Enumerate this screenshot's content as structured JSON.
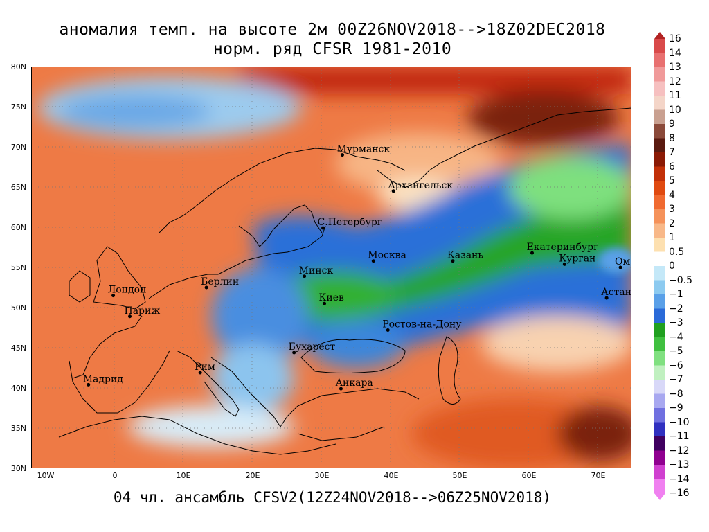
{
  "title": {
    "line1": "аномалия темп. на высоте 2м 00Z26NOV2018-->18Z02DEC2018",
    "line2": "норм. ряд CFSR 1981-2010"
  },
  "footer": "04 чл. ансамбль CFSV2(12Z24NOV2018-->06Z25NOV2018)",
  "axes": {
    "lat_labels": [
      "80N",
      "75N",
      "70N",
      "65N",
      "60N",
      "55N",
      "50N",
      "45N",
      "40N",
      "35N",
      "30N"
    ],
    "lon_labels": [
      "10W",
      "0",
      "10E",
      "20E",
      "30E",
      "40E",
      "50E",
      "60E",
      "70E"
    ],
    "lat_range": [
      30,
      80
    ],
    "lon_range": [
      -12,
      75
    ]
  },
  "cities": [
    {
      "name": "Мурманск",
      "lon": 33.1,
      "lat": 69.0
    },
    {
      "name": "Архангельск",
      "lon": 40.5,
      "lat": 64.5
    },
    {
      "name": "С.Петербург",
      "lon": 30.3,
      "lat": 59.9
    },
    {
      "name": "Москва",
      "lon": 37.6,
      "lat": 55.8
    },
    {
      "name": "Казань",
      "lon": 49.1,
      "lat": 55.8
    },
    {
      "name": "Екатеринбург",
      "lon": 60.6,
      "lat": 56.8
    },
    {
      "name": "Курган",
      "lon": 65.3,
      "lat": 55.4
    },
    {
      "name": "Омск",
      "lon": 73.4,
      "lat": 55.0
    },
    {
      "name": "Астана",
      "lon": 71.4,
      "lat": 51.2
    },
    {
      "name": "Минск",
      "lon": 27.6,
      "lat": 53.9
    },
    {
      "name": "Берлин",
      "lon": 13.4,
      "lat": 52.5
    },
    {
      "name": "Лондон",
      "lon": -0.1,
      "lat": 51.5
    },
    {
      "name": "Париж",
      "lon": 2.3,
      "lat": 48.9
    },
    {
      "name": "Киев",
      "lon": 30.5,
      "lat": 50.5
    },
    {
      "name": "Ростов-на-Дону",
      "lon": 39.7,
      "lat": 47.2
    },
    {
      "name": "Бухарест",
      "lon": 26.1,
      "lat": 44.4
    },
    {
      "name": "Рим",
      "lon": 12.5,
      "lat": 41.9
    },
    {
      "name": "Мадрид",
      "lon": -3.7,
      "lat": 40.4
    },
    {
      "name": "Анкара",
      "lon": 32.9,
      "lat": 39.9
    }
  ],
  "colorbar": {
    "levels": [
      "16",
      "14",
      "13",
      "12",
      "11",
      "10",
      "9",
      "8",
      "7",
      "6",
      "5",
      "4",
      "3",
      "2",
      "1",
      "0.5",
      "0",
      "−0.5",
      "−1",
      "−2",
      "−3",
      "−4",
      "−5",
      "−6",
      "−7",
      "−8",
      "−9",
      "−10",
      "−11",
      "−12",
      "−13",
      "−14",
      "−16"
    ],
    "colors": [
      "#b22222",
      "#d94a4a",
      "#e87070",
      "#f09a9a",
      "#f6c0c0",
      "#f4d5c8",
      "#c9a090",
      "#8b4a3a",
      "#5a1a10",
      "#8b1a05",
      "#c23008",
      "#e04a10",
      "#f06a30",
      "#f5925a",
      "#f8b888",
      "#fde0b0",
      "#ffffff",
      "#c4e8f8",
      "#8ccaf0",
      "#5aa0e8",
      "#2a6ad8",
      "#20a020",
      "#40c040",
      "#80e080",
      "#c0f0c0",
      "#d8d8f8",
      "#a8a8f0",
      "#7070e0",
      "#3030c0",
      "#400060",
      "#900090",
      "#d040d0",
      "#f080f0"
    ]
  }
}
